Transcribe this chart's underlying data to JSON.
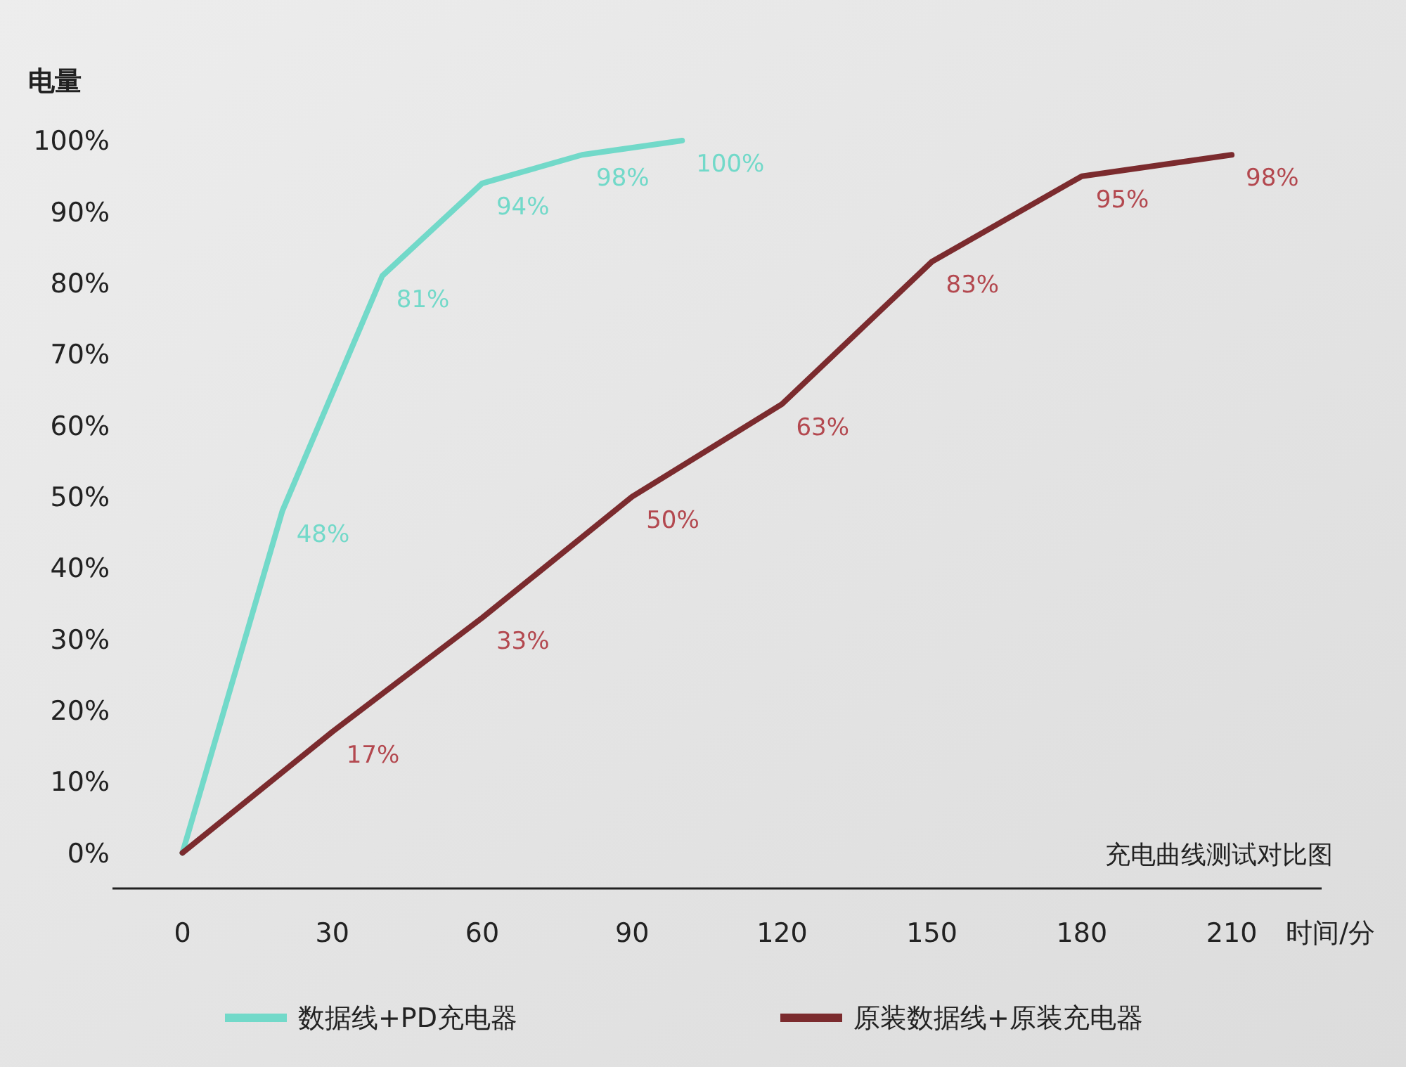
{
  "chart_data": {
    "type": "line",
    "ylabel": "电量",
    "xlabel": "时间/分",
    "annotations": [
      "充电曲线测试对比图"
    ],
    "xlim": [
      -14,
      228
    ],
    "xticks": [
      0,
      30,
      60,
      90,
      120,
      150,
      180,
      210
    ],
    "ylim": [
      -5,
      100
    ],
    "yticks": [
      {
        "value": 0,
        "label": "0%"
      },
      {
        "value": 10,
        "label": "10%"
      },
      {
        "value": 20,
        "label": "20%"
      },
      {
        "value": 30,
        "label": "30%"
      },
      {
        "value": 40,
        "label": "40%"
      },
      {
        "value": 50,
        "label": "50%"
      },
      {
        "value": 60,
        "label": "60%"
      },
      {
        "value": 70,
        "label": "70%"
      },
      {
        "value": 80,
        "label": "80%"
      },
      {
        "value": 90,
        "label": "90%"
      },
      {
        "value": 100,
        "label": "100%"
      }
    ],
    "grid": false,
    "legend": "bottom",
    "marker": "none",
    "line_style": "solid",
    "series": [
      {
        "name": "数据线+PD充电器",
        "color": "#72d9c9",
        "x": [
          0,
          20,
          40,
          60,
          80,
          100
        ],
        "values": [
          0,
          48,
          81,
          94,
          98,
          100
        ],
        "value_labels": [
          null,
          "48%",
          "81%",
          "94%",
          "98%",
          "100%"
        ]
      },
      {
        "name": "原装数据线+原装充电器",
        "color": "#7b2b2e",
        "x": [
          0,
          30,
          60,
          90,
          120,
          150,
          180,
          210
        ],
        "values": [
          0,
          17,
          33,
          50,
          63,
          83,
          95,
          98
        ],
        "value_labels": [
          null,
          "17%",
          "33%",
          "50%",
          "63%",
          "83%",
          "95%",
          "98%"
        ]
      }
    ]
  }
}
